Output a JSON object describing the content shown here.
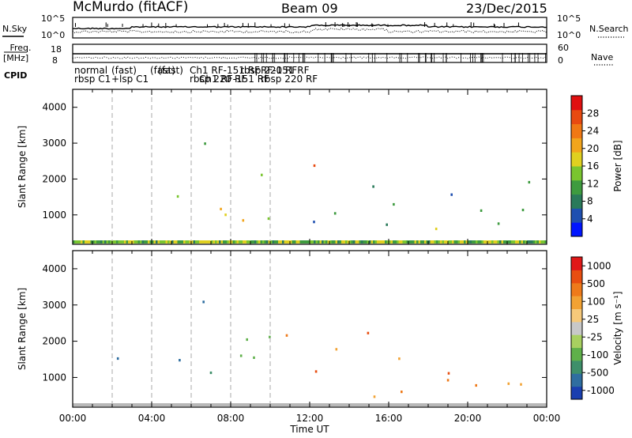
{
  "header": {
    "station": "McMurdo (fitACF)",
    "beam": "Beam 09",
    "date": "23/Dec/2015"
  },
  "top_panels": {
    "nsky_label": "N.Sky",
    "nsearch_label": "N.Search",
    "noise_ticks_left": [
      "10^5",
      "10^0"
    ],
    "noise_ticks_right": [
      "10^5",
      "10^0"
    ],
    "freq_label": "Freq. [MHz]",
    "freq_ticks_left": [
      "18",
      "8"
    ],
    "nave_label": "Nave",
    "nave_ticks_right": [
      "60",
      "0"
    ],
    "cpid_label": "CPID",
    "cpid_texts": [
      "normal",
      "rbsp C1",
      "(fast)",
      "+lsp C1",
      "(fast)",
      "Ch1 RF-151 RF",
      "rbsp 220 RF",
      "RF-151 RF",
      "rbsp 220 RF"
    ]
  },
  "chart_data": [
    {
      "type": "heatmap",
      "name": "power",
      "ylabel": "Slant Range [km]",
      "ylim": [
        180,
        4500
      ],
      "yticks": [
        1000,
        2000,
        3000,
        4000
      ],
      "xlim_hours": [
        0,
        24
      ],
      "colorbar": {
        "label": "Power [dB]",
        "ticks": [
          "4",
          "8",
          "12",
          "16",
          "20",
          "24",
          "28"
        ],
        "colors": [
          "#0015ff",
          "#1f4fb0",
          "#2a7a5a",
          "#3e9b3f",
          "#7ac52f",
          "#e0d020",
          "#f2a51c",
          "#f07814",
          "#e84a10",
          "#e01010"
        ]
      }
    },
    {
      "type": "heatmap",
      "name": "velocity",
      "ylabel": "Slant Range [km]",
      "ylim": [
        180,
        4500
      ],
      "yticks": [
        1000,
        2000,
        3000,
        4000
      ],
      "xlim_hours": [
        0,
        24
      ],
      "xticks": [
        "00:00",
        "04:00",
        "08:00",
        "12:00",
        "16:00",
        "20:00",
        "00:00"
      ],
      "xlabel": "Time UT",
      "colorbar": {
        "label": "Velocity [m s⁻¹]",
        "ticks": [
          "1000",
          "500",
          "100",
          "25",
          "-25",
          "-100",
          "-500",
          "-1000"
        ],
        "colors": [
          "#1a3fb0",
          "#2f6ea0",
          "#3e8f6a",
          "#5fb04a",
          "#a8d060",
          "#c8c8c8",
          "#f6c97a",
          "#f2a233",
          "#ee7a1a",
          "#e84e10",
          "#e01818"
        ]
      }
    }
  ]
}
